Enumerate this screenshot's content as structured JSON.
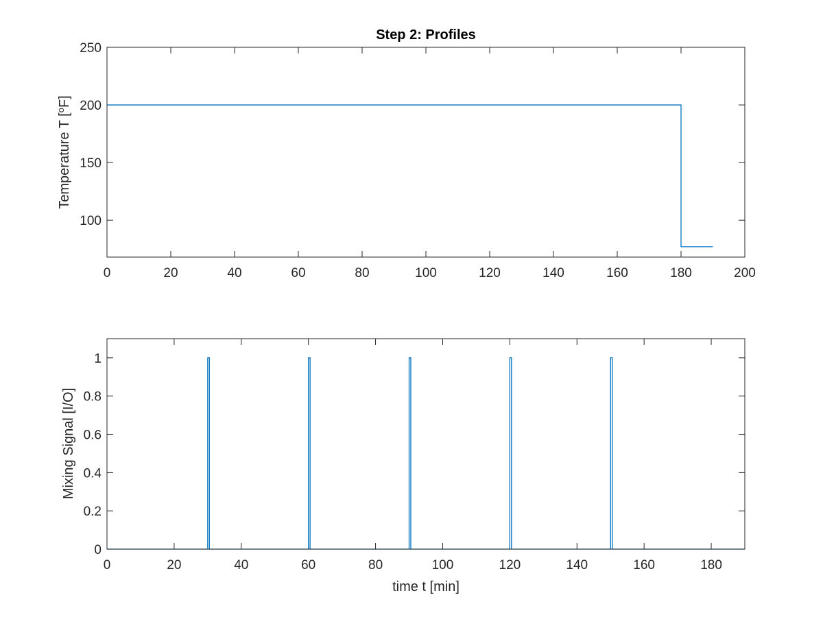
{
  "chart_data": [
    {
      "type": "line",
      "title": "Step 2: Profiles",
      "xlabel": "",
      "ylabel": "Temperature T [",
      "ylabel_sup": "o",
      "ylabel_tail": "F]",
      "xlim": [
        0,
        200
      ],
      "ylim": [
        68,
        250
      ],
      "xticks": [
        0,
        20,
        40,
        60,
        80,
        100,
        120,
        140,
        160,
        180,
        200
      ],
      "yticks": [
        100,
        150,
        200,
        250
      ],
      "grid": false,
      "series": [
        {
          "color": "#0072BD",
          "x": [
            0,
            180,
            180,
            190
          ],
          "y": [
            200,
            200,
            77,
            77
          ]
        }
      ]
    },
    {
      "type": "line",
      "title": "",
      "xlabel": "time t [min]",
      "ylabel": "Mixing Signal [I/O]",
      "xlim": [
        0,
        190
      ],
      "ylim": [
        0,
        1.1
      ],
      "xticks": [
        0,
        20,
        40,
        60,
        80,
        100,
        120,
        140,
        160,
        180
      ],
      "yticks": [
        0,
        0.2,
        0.4,
        0.6,
        0.8,
        1
      ],
      "grid": false,
      "series": [
        {
          "color": "#0072BD",
          "x": [
            0,
            30,
            30,
            30.5,
            30.5,
            60,
            60,
            60.5,
            60.5,
            90,
            90,
            90.5,
            90.5,
            120,
            120,
            120.5,
            120.5,
            150,
            150,
            150.5,
            150.5,
            190
          ],
          "y": [
            0,
            0,
            1,
            1,
            0,
            0,
            1,
            1,
            0,
            0,
            1,
            1,
            0,
            0,
            1,
            1,
            0,
            0,
            1,
            1,
            0,
            0
          ]
        }
      ]
    }
  ]
}
